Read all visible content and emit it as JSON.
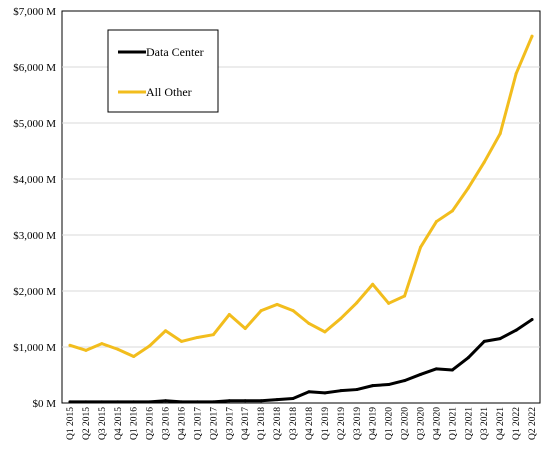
{
  "chart_data": {
    "type": "line",
    "title": "",
    "xlabel": "",
    "ylabel": "",
    "ylim": [
      0,
      7000
    ],
    "y_ticks": [
      0,
      1000,
      2000,
      3000,
      4000,
      5000,
      6000,
      7000
    ],
    "y_tick_labels": [
      "$0 M",
      "$1,000 M",
      "$2,000 M",
      "$3,000 M",
      "$4,000 M",
      "$5,000 M",
      "$6,000 M",
      "$7,000 M"
    ],
    "grid": true,
    "legend_placement": "top-left",
    "categories": [
      "Q1 2015",
      "Q2 2015",
      "Q3 2015",
      "Q4 2015",
      "Q1 2016",
      "Q2 2016",
      "Q3 2016",
      "Q4 2016",
      "Q1 2017",
      "Q2 2017",
      "Q3 2017",
      "Q4 2017",
      "Q1 2018",
      "Q2 2018",
      "Q3 2018",
      "Q4 2018",
      "Q1 2019",
      "Q2 2019",
      "Q3 2019",
      "Q4 2019",
      "Q1 2020",
      "Q2 2020",
      "Q3 2020",
      "Q4 2020",
      "Q1 2021",
      "Q2 2021",
      "Q3 2021",
      "Q4 2021",
      "Q1 2022",
      "Q2 2022"
    ],
    "series": [
      {
        "name": "Data Center",
        "color": "#000000",
        "values": [
          20,
          20,
          20,
          20,
          20,
          20,
          40,
          20,
          20,
          20,
          40,
          40,
          40,
          60,
          80,
          200,
          180,
          220,
          240,
          310,
          330,
          400,
          510,
          610,
          590,
          810,
          1100,
          1150,
          1300,
          1490
        ]
      },
      {
        "name": "All Other",
        "color": "#f2bd1d",
        "values": [
          1030,
          940,
          1060,
          960,
          830,
          1020,
          1290,
          1100,
          1170,
          1220,
          1580,
          1330,
          1650,
          1760,
          1650,
          1420,
          1270,
          1510,
          1790,
          2120,
          1780,
          1910,
          2780,
          3240,
          3430,
          3840,
          4300,
          4810,
          5880,
          6550
        ]
      }
    ]
  }
}
